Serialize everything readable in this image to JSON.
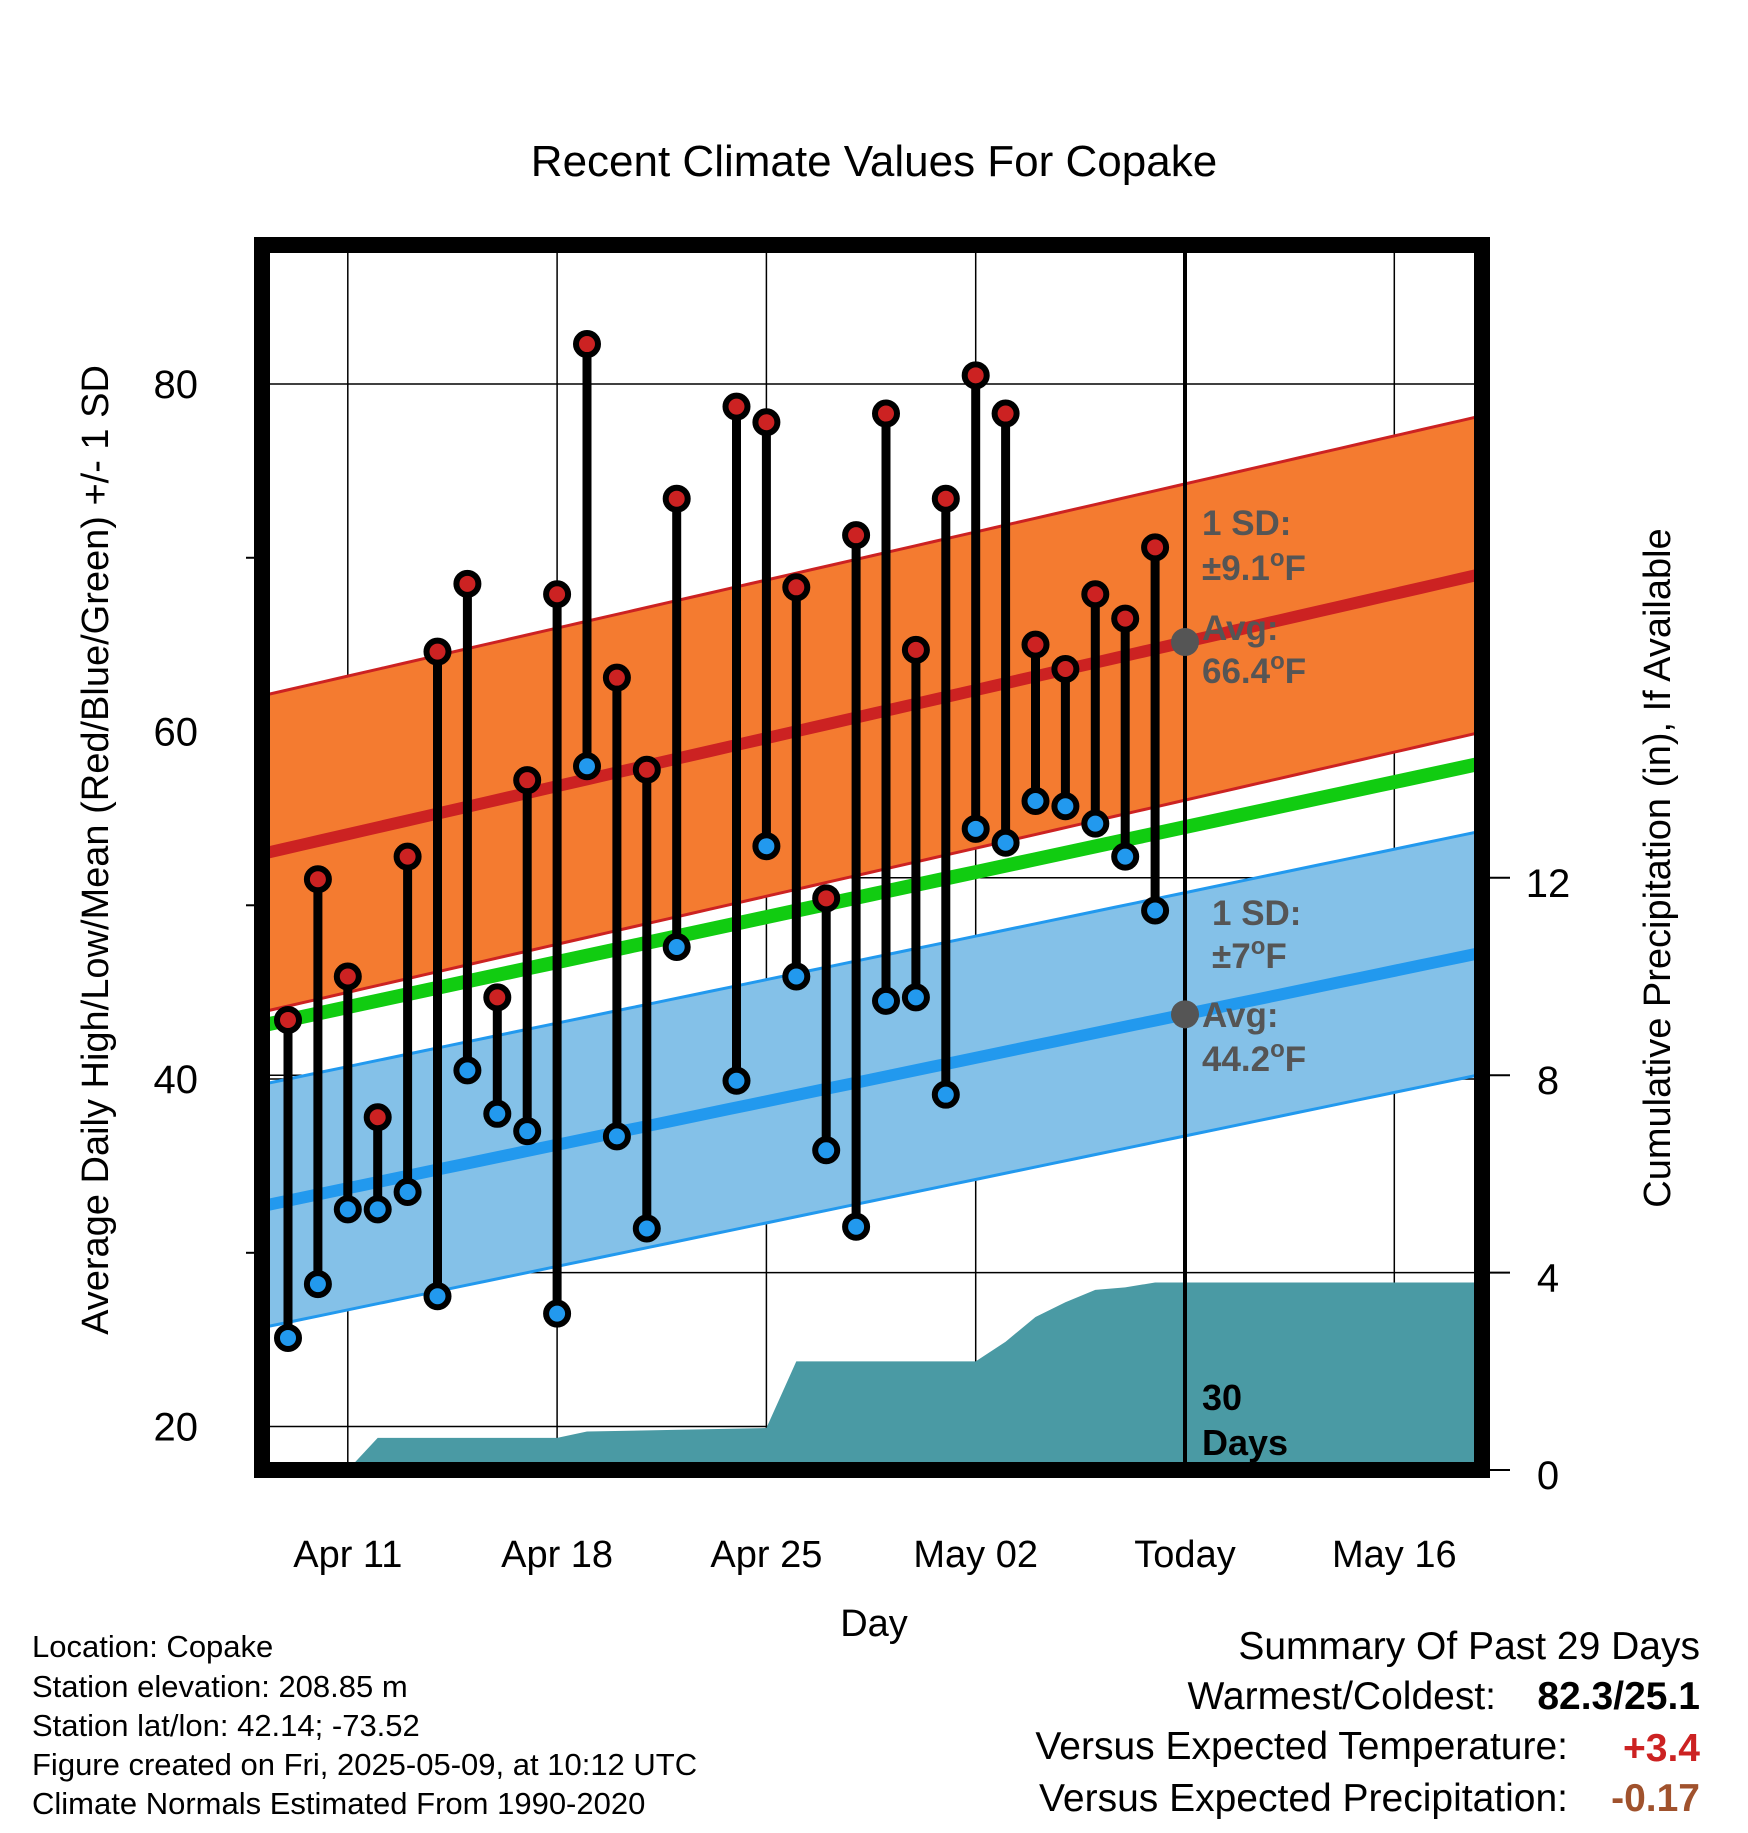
{
  "chart_data": {
    "type": "line",
    "title": "Recent Climate Values For Copake",
    "xlabel": "Day",
    "ylabel": "Average Daily High/Low/Mean (Red/Blue/Green) +/- 1 SD",
    "y2label": "Cumulative Precipitation (in), If Available",
    "ylim": [
      17.5,
      88
    ],
    "y2lim": [
      0,
      20
    ],
    "yticks": [
      "20",
      "40",
      "60",
      "80"
    ],
    "y2ticks": [
      "0",
      "4",
      "8",
      "12"
    ],
    "xticks": [
      "Apr 11",
      "Apr 18",
      "Apr 25",
      "May 02",
      "Today",
      "May 16"
    ],
    "today_marker": "Today",
    "days": [
      "Apr 09",
      "Apr 10",
      "Apr 11",
      "Apr 12",
      "Apr 13",
      "Apr 14",
      "Apr 15",
      "Apr 16",
      "Apr 17",
      "Apr 18",
      "Apr 19",
      "Apr 20",
      "Apr 21",
      "Apr 22",
      "Apr 23",
      "Apr 24",
      "Apr 25",
      "Apr 26",
      "Apr 27",
      "Apr 28",
      "Apr 29",
      "Apr 30",
      "May 01",
      "May 02",
      "May 03",
      "May 04",
      "May 05",
      "May 06",
      "May 07",
      "May 08"
    ],
    "series": [
      {
        "name": "High",
        "color": "#cc2222",
        "values": [
          43.4,
          51.5,
          45.9,
          37.8,
          52.8,
          64.6,
          68.5,
          44.7,
          57.2,
          67.9,
          82.3,
          63.1,
          57.8,
          73.4,
          null,
          78.7,
          77.8,
          68.3,
          50.4,
          71.3,
          78.3,
          64.7,
          73.4,
          80.5,
          78.3,
          65.0,
          63.6,
          67.9,
          66.5,
          70.6
        ]
      },
      {
        "name": "Low",
        "color": "#2299ee",
        "values": [
          25.1,
          28.2,
          32.5,
          32.5,
          33.5,
          27.5,
          40.5,
          38.0,
          37.0,
          26.5,
          58.0,
          36.7,
          31.4,
          47.6,
          null,
          39.9,
          53.4,
          45.9,
          35.9,
          31.5,
          44.5,
          44.7,
          39.1,
          54.4,
          53.6,
          56.0,
          55.7,
          54.7,
          52.8,
          49.7
        ]
      },
      {
        "name": "Normal High",
        "color": "#cc2222",
        "sd": 9.1,
        "x_day": [
          0,
          40
        ],
        "values": [
          53.3,
          69.1
        ]
      },
      {
        "name": "Normal Low",
        "color": "#2299ee",
        "sd": 7.0,
        "x_day": [
          0,
          40
        ],
        "values": [
          33.0,
          47.3
        ]
      },
      {
        "name": "Normal Mean",
        "color": "#11cc11",
        "x_day": [
          0,
          40
        ],
        "values": [
          43.4,
          58.2
        ]
      },
      {
        "name": "Cumulative Precipitation",
        "color": "#4a9aa4",
        "axis": "y2",
        "x_day": [
          0,
          2,
          3,
          9,
          10,
          16,
          17,
          23,
          24,
          25,
          26,
          27,
          28,
          29,
          40
        ],
        "values": [
          0.0,
          0.0,
          0.65,
          0.65,
          0.78,
          0.85,
          2.2,
          2.2,
          2.6,
          3.1,
          3.4,
          3.65,
          3.7,
          3.8,
          3.8
        ]
      }
    ],
    "annotations": {
      "high_sd_label": "1 SD:",
      "high_sd_value": "±9.1",
      "high_avg_label": "Avg:",
      "high_avg_value": "66.4",
      "low_sd_label": "1 SD:",
      "low_sd_value": "±7",
      "low_avg_label": "Avg:",
      "low_avg_value": "44.2",
      "degree_sup": "o",
      "unit_f": "F",
      "days_number": "30",
      "days_word": "Days"
    },
    "grid": true
  },
  "info": {
    "location": "Location: Copake",
    "elevation": "Station elevation: 208.85 m",
    "latlon": "Station lat/lon: 42.14; -73.52",
    "created": "Figure created on Fri, 2025-05-09, at 10:12 UTC",
    "normals": "Climate Normals Estimated From 1990-2020"
  },
  "summary": {
    "title": "Summary Of Past 29 Days",
    "warm_cold_label": "Warmest/Coldest:",
    "warm_cold_value": "82.3/25.1",
    "temp_label": "Versus Expected Temperature:",
    "temp_value": "+3.4",
    "temp_color": "#cc2222",
    "precip_label": "Versus Expected Precipitation:",
    "precip_value": "-0.17",
    "precip_color": "#a0522d"
  },
  "colors": {
    "high_band": "#f47b30",
    "low_band": "#84c1e8",
    "precip_fill": "#4a9aa4"
  }
}
